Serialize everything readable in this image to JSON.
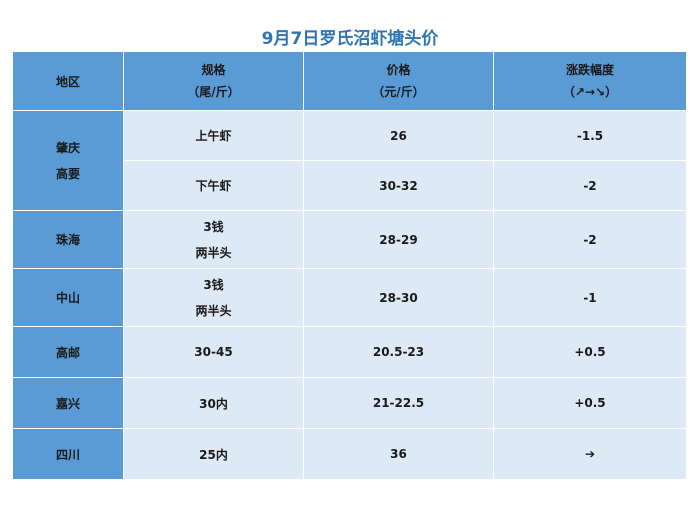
{
  "title": "9月7日罗氏沼虾塘头价",
  "headers": {
    "region": "地区",
    "spec_line1": "规格",
    "spec_line2": "（尾/斤）",
    "price_line1": "价格",
    "price_line2": "（元/斤）",
    "change_line1": "涨跌幅度",
    "change_line2": "（↗→↘）"
  },
  "rows": [
    {
      "region_line1": "肇庆",
      "region_line2": "高要",
      "spec": "上午虾",
      "price": "26",
      "change": "-1.5",
      "change_color": "#00b050"
    },
    {
      "spec": "下午虾",
      "price": "30-32",
      "change": "-2",
      "change_color": "#00b050"
    },
    {
      "region": "珠海",
      "spec_line1": "3钱",
      "spec_line2": "两半头",
      "price": "28-29",
      "change": "-2",
      "change_color": "#00b050"
    },
    {
      "region": "中山",
      "spec_line1": "3钱",
      "spec_line2": "两半头",
      "price": "28-30",
      "change": "-1",
      "change_color": "#00b050"
    },
    {
      "region": "高邮",
      "spec": "30-45",
      "price": "20.5-23",
      "change": "+0.5",
      "change_color": "#ff0000"
    },
    {
      "region": "嘉兴",
      "spec": "30内",
      "price": "21-22.5",
      "change": "+0.5",
      "change_color": "#ff0000"
    },
    {
      "region": "四川",
      "spec": "25内",
      "price": "36",
      "change": "➔",
      "change_color": "#333333"
    }
  ],
  "colors": {
    "header_bg": "#5b9bd5",
    "cell_bg": "#dde9f5",
    "title": "#2e75b6"
  }
}
